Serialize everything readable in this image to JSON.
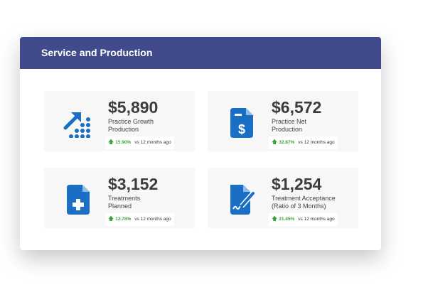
{
  "title": "Service and Production",
  "metrics": [
    {
      "value": "$5,890",
      "label": "Practice Growth Production",
      "change": "15.90%",
      "compare": "vs 12 months ago",
      "icon": "growth-chart-icon"
    },
    {
      "value": "$6,572",
      "label": "Practice Net Production",
      "change": "32.87%",
      "compare": "vs 12 months ago",
      "icon": "invoice-dollar-icon"
    },
    {
      "value": "$3,152",
      "label": "Treatments Planned",
      "change": "12.78%",
      "compare": "vs 12 months ago",
      "icon": "medical-document-icon"
    },
    {
      "value": "$1,254",
      "label": "Treatment Acceptance (Ratio of 3 Months)",
      "change": "21.45%",
      "compare": "vs 12 months ago",
      "icon": "signed-document-icon"
    }
  ],
  "colors": {
    "header": "#414a8b",
    "icon": "#1a6fc4",
    "up": "#3aa33a"
  }
}
